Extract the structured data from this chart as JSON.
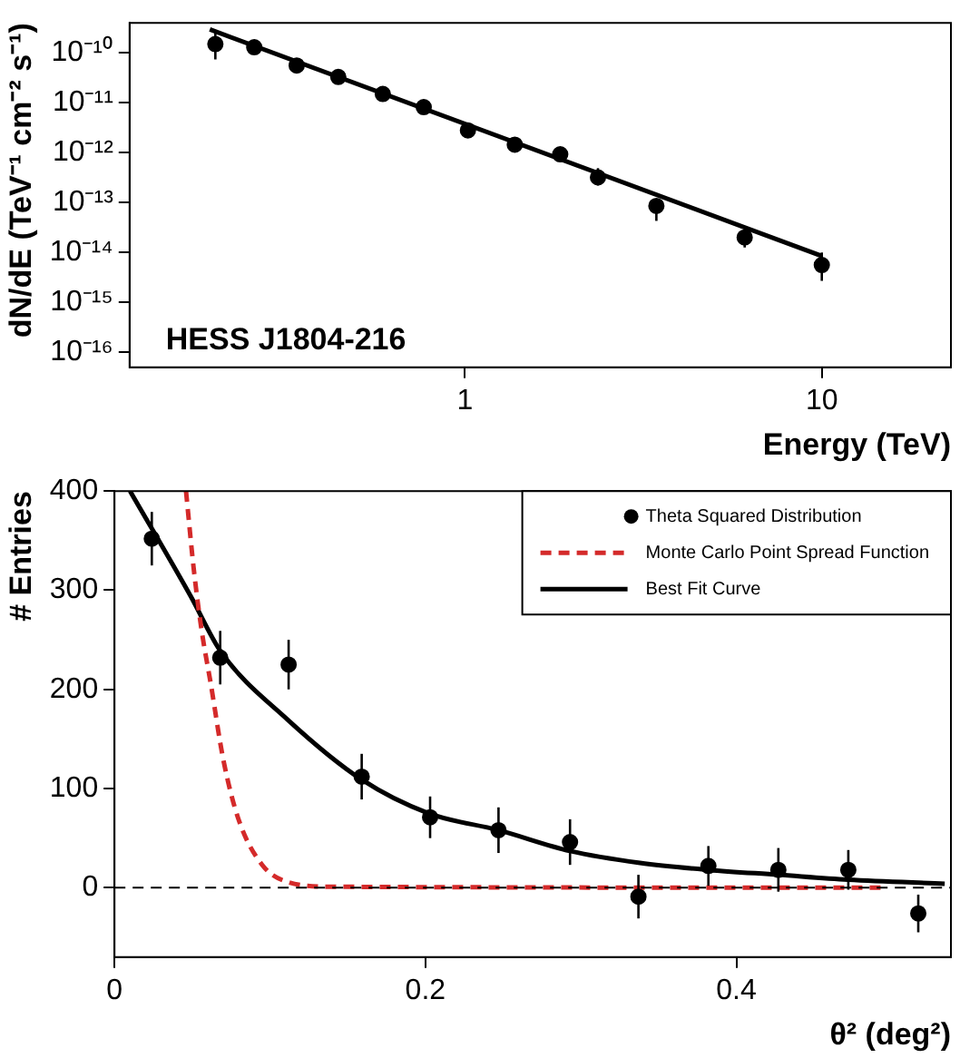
{
  "chart_data": [
    {
      "type": "scatter",
      "xlabel": "Energy (TeV)",
      "ylabel": "dN/dE (TeV⁻¹ cm⁻² s⁻¹)",
      "log": "xy",
      "xlim": [
        0.115,
        23
      ],
      "ylim": [
        5e-17,
        4e-10
      ],
      "xticks": [
        1,
        10
      ],
      "yticks": [
        {
          "value": 1e-10,
          "label": "10⁻¹⁰"
        },
        {
          "value": 1e-11,
          "label": "10⁻¹¹"
        },
        {
          "value": 1e-12,
          "label": "10⁻¹²"
        },
        {
          "value": 1e-13,
          "label": "10⁻¹³"
        },
        {
          "value": 1e-14,
          "label": "10⁻¹⁴"
        },
        {
          "value": 1e-15,
          "label": "10⁻¹⁵"
        },
        {
          "value": 1e-16,
          "label": "10⁻¹⁶"
        }
      ],
      "grid": false,
      "legend": false,
      "annotations": [
        "HESS J1804-216"
      ],
      "series": [
        {
          "marker": "circle",
          "color": "#000000",
          "x": [
            0.2,
            0.257,
            0.338,
            0.442,
            0.589,
            0.767,
            1.02,
            1.38,
            1.85,
            2.36,
            3.44,
            6.08,
            10.0
          ],
          "values": [
            1.5e-10,
            1.3e-10,
            5.6e-11,
            3.3e-11,
            1.5e-11,
            8.2e-12,
            2.8e-12,
            1.45e-12,
            9.3e-13,
            3.2e-13,
            8.6e-14,
            2e-14,
            5.6e-15
          ],
          "errors": [
            [
              7.4e-11,
              2.8e-10
            ],
            null,
            null,
            null,
            null,
            null,
            null,
            null,
            [
              6.9e-13,
              1.15e-12
            ],
            [
              2.2e-13,
              4.9e-13
            ],
            [
              4.3e-14,
              1.1e-13
            ],
            [
              1.26e-14,
              2.7e-14
            ],
            [
              2.7e-15,
              1e-14
            ]
          ]
        },
        {
          "type": "line",
          "color": "#000000",
          "x": [
            0.193,
            10
          ],
          "values": [
            2.96e-10,
            8.5e-15
          ]
        }
      ]
    },
    {
      "type": "scatter",
      "xlabel": "θ² (deg²)",
      "ylabel": "# Entries",
      "xlim": [
        0,
        0.538
      ],
      "ylim": [
        -70,
        400
      ],
      "xticks": [
        0,
        0.2,
        0.4
      ],
      "yticks": [
        0,
        100,
        200,
        300,
        400
      ],
      "grid": false,
      "legend": "top right",
      "ref_lines": [
        {
          "axis": "y",
          "value": 0,
          "color": "#000000",
          "line_style": "dashed"
        }
      ],
      "series": [
        {
          "marker": "circle",
          "name": "Theta Squared Distribution",
          "color": "#000000",
          "x": [
            0.024,
            0.068,
            0.112,
            0.159,
            0.203,
            0.247,
            0.293,
            0.337,
            0.382,
            0.427,
            0.472,
            0.517
          ],
          "values": [
            352,
            232,
            225,
            112,
            71,
            58,
            46,
            -9,
            22,
            18,
            18,
            -26
          ],
          "errors": [
            27,
            27,
            25,
            23,
            21,
            23,
            23,
            22,
            20,
            22,
            20,
            19
          ]
        },
        {
          "type": "line",
          "name": "Monte Carlo Point Spread Function",
          "color": "#d42a2a",
          "line_style": "dashed",
          "x": [
            0.046,
            0.051,
            0.056,
            0.062,
            0.07,
            0.08,
            0.095,
            0.111,
            0.14,
            0.495
          ],
          "values": [
            400,
            321,
            260,
            205,
            129,
            68,
            23,
            6,
            1,
            0
          ]
        },
        {
          "type": "line",
          "name": "Best Fit Curve",
          "color": "#000000",
          "line_style": "solid",
          "x": [
            0.01,
            0.049,
            0.068,
            0.111,
            0.159,
            0.202,
            0.247,
            0.293,
            0.338,
            0.382,
            0.427,
            0.472,
            0.534
          ],
          "values": [
            400,
            294,
            239,
            170,
            109,
            75,
            58,
            37,
            25,
            18,
            13,
            8,
            4
          ]
        }
      ]
    }
  ]
}
